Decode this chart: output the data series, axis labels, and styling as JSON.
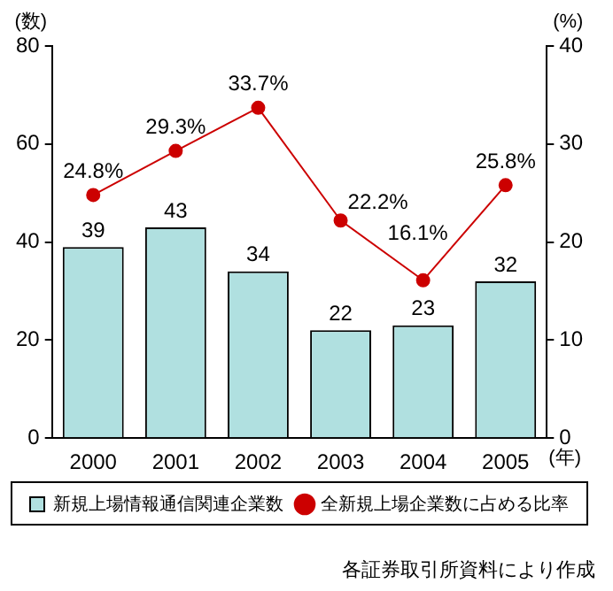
{
  "chart_data": {
    "type": "bar",
    "categories": [
      "2000",
      "2001",
      "2002",
      "2003",
      "2004",
      "2005"
    ],
    "xlabel": "(年)",
    "ylabel": "(数)",
    "y2label": "(%)",
    "series": [
      {
        "name": "新規上場情報通信関連企業数",
        "color": "#b0e0e0",
        "values": [
          39,
          43,
          34,
          22,
          23,
          32
        ],
        "value_labels": [
          "39",
          "43",
          "34",
          "22",
          "23",
          "32"
        ]
      },
      {
        "name": "全新規上場企業数に占める比率",
        "type": "line",
        "axis": "y2",
        "color": "#cc0000",
        "values": [
          24.8,
          29.3,
          33.7,
          22.2,
          16.1,
          25.8
        ],
        "value_labels": [
          "24.8%",
          "29.3%",
          "33.7%",
          "22.2%",
          "16.1%",
          "25.8%"
        ]
      }
    ],
    "ylim": [
      0,
      80
    ],
    "yticks": [
      0,
      20,
      40,
      60,
      80
    ],
    "y2lim": [
      0,
      40
    ],
    "y2ticks": [
      0,
      10,
      20,
      30,
      40
    ],
    "legend": "bottom",
    "marker": "circle",
    "grid": false,
    "annotations": [
      "各証券取引所資料により作成"
    ]
  }
}
